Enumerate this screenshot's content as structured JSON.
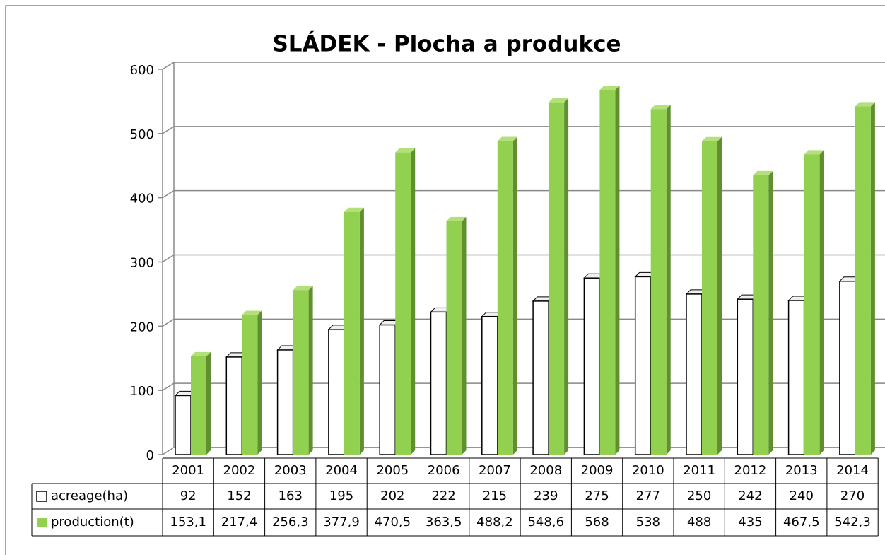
{
  "chart_data": {
    "type": "bar",
    "title": "SLÁDEK - Plocha a produkce",
    "categories": [
      "2001",
      "2002",
      "2003",
      "2004",
      "2005",
      "2006",
      "2007",
      "2008",
      "2009",
      "2010",
      "2011",
      "2012",
      "2013",
      "2014"
    ],
    "series": [
      {
        "name": "acreage(ha)",
        "color": "#ffffff",
        "values": [
          92,
          152,
          163,
          195,
          202,
          222,
          215,
          239,
          275,
          277,
          250,
          242,
          240,
          270
        ]
      },
      {
        "name": "production(t)",
        "color": "#92d050",
        "values": [
          153.1,
          217.4,
          256.3,
          377.9,
          470.5,
          363.5,
          488.2,
          548.6,
          568,
          538,
          488,
          435,
          467.5,
          542.3
        ],
        "value_labels": [
          "153,1",
          "217,4",
          "256,3",
          "377,9",
          "470,5",
          "363,5",
          "488,2",
          "548,6",
          "568",
          "538",
          "488",
          "435",
          "467,5",
          "542,3"
        ]
      }
    ],
    "ylim": [
      0,
      600
    ],
    "yticks": [
      0,
      100,
      200,
      300,
      400,
      500,
      600
    ],
    "grid": true
  }
}
